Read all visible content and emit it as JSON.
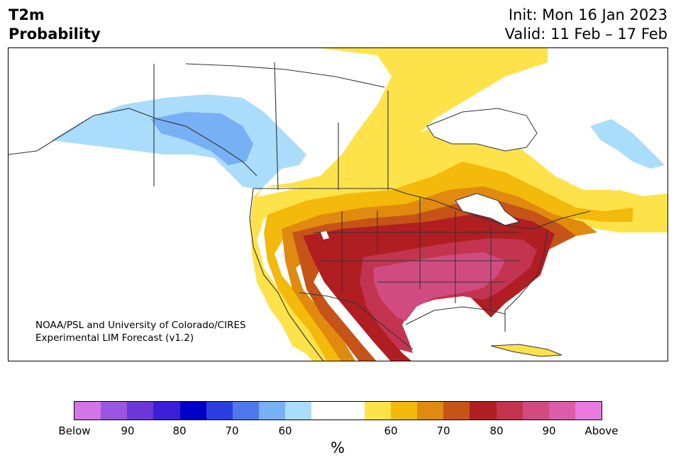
{
  "header": {
    "title_line1": "T2m",
    "title_line2": "Probability",
    "init": "Init: Mon 16 Jan 2023",
    "valid": "Valid: 11 Feb – 17 Feb"
  },
  "map": {
    "credit_line1": "NOAA/PSL and University of Colorado/CIRES",
    "credit_line2": "Experimental LIM Forecast (v1.2)",
    "region": "North America",
    "warm_center": "Southern Plains / Gulf Coast / Southeast (>80% Above)",
    "cold_center": "Alaska / western Canada (60-70% Below)"
  },
  "colorbar": {
    "colors": [
      "#d375e8",
      "#9a56e0",
      "#6a38d8",
      "#3a1fd6",
      "#0000c8",
      "#2a3ee0",
      "#5078ea",
      "#78b0f5",
      "#aadcfc",
      "#ffffff",
      "#ffffff",
      "#fee24a",
      "#f3b90b",
      "#e08a10",
      "#c65318",
      "#b01e22",
      "#c33450",
      "#d04c80",
      "#dd5ca8",
      "#e87ae0"
    ],
    "labels": [
      "Below",
      "90",
      "80",
      "70",
      "60",
      "60",
      "70",
      "80",
      "90",
      "Above"
    ],
    "unit": "%"
  }
}
